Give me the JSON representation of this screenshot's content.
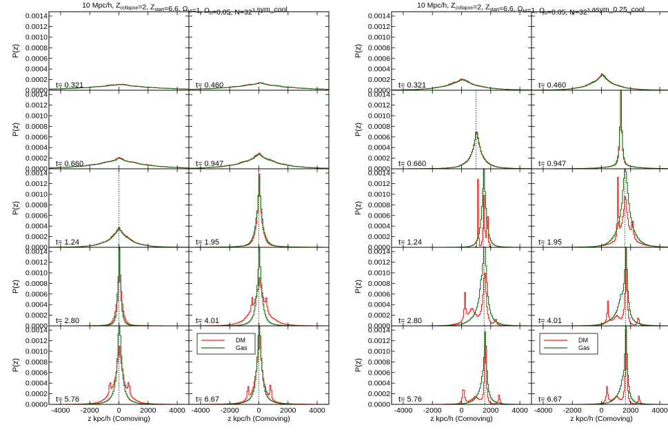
{
  "figure": {
    "colors": {
      "dm": "#e8231d",
      "gas": "#1c6e14",
      "marker": "#000000"
    },
    "time_labels": [
      "t= 0.321",
      "t= 0.460",
      "t= 0.660",
      "t= 0.947",
      "t= 1.24",
      "t= 1.95",
      "t= 2.80",
      "t= 4.01",
      "t= 5.76",
      "t= 6.67"
    ]
  },
  "chart_data": [
    {
      "type": "line",
      "title_parts": {
        "a": "10 Mpc/h, Z",
        "a_sub": "collapse",
        "b": "=2, Z",
        "b_sub": "start",
        "c": "=6.6, Ω",
        "c_sub": "M",
        "d": "=1, Ω",
        "d_sub": "b",
        "e": "=0.05, N=32",
        "e_sup": "3",
        "f": ",sym_cool"
      },
      "xlabel": "z kpc/h (Comoving)",
      "ylabel": "P(z)",
      "xlim": [
        -4800,
        4800
      ],
      "ylim": [
        0,
        0.00148
      ],
      "xticks": [
        "-4000",
        "-2000",
        "0",
        "2000",
        "4000"
      ],
      "yticks": [
        "0.0000",
        "0.0002",
        "0.0004",
        "0.0006",
        "0.0008",
        "0.0010",
        "0.0012",
        "0.0014"
      ],
      "legend": {
        "placement": "top-center",
        "entries": [
          "DM",
          "Gas"
        ]
      },
      "panels": [
        {
          "t": "t= 0.321",
          "center": 0,
          "marker": false,
          "dm": {
            "amp": 0.000115,
            "w": 2800,
            "comps": []
          },
          "gas": {
            "amp": 0.000112,
            "w": 2800,
            "comps": []
          }
        },
        {
          "t": "t= 0.460",
          "center": 0,
          "marker": false,
          "dm": {
            "amp": 0.00014,
            "w": 2300,
            "comps": []
          },
          "gas": {
            "amp": 0.000135,
            "w": 2300,
            "comps": []
          }
        },
        {
          "t": "t= 0.660",
          "center": 0,
          "marker": false,
          "dm": {
            "amp": 0.0002,
            "w": 1900,
            "comps": []
          },
          "gas": {
            "amp": 0.000195,
            "w": 1900,
            "comps": []
          }
        },
        {
          "t": "t= 0.947",
          "center": 0,
          "marker": false,
          "dm": {
            "amp": 0.00028,
            "w": 1400,
            "comps": []
          },
          "gas": {
            "amp": 0.00027,
            "w": 1400,
            "comps": []
          }
        },
        {
          "t": "t= 1.24",
          "center": 0,
          "marker": true,
          "dm": {
            "amp": 0.00037,
            "w": 800,
            "comps": []
          },
          "gas": {
            "amp": 0.00036,
            "w": 800,
            "comps": []
          }
        },
        {
          "t": "t= 1.95",
          "center": 0,
          "marker": true,
          "dm": {
            "amp": 0.00135,
            "w": 170,
            "comps": [
              [
                8e-05,
                0,
                900
              ]
            ]
          },
          "gas": {
            "amp": 0.0013,
            "w": 200,
            "comps": [
              [
                8e-05,
                0,
                900
              ]
            ]
          }
        },
        {
          "t": "t= 2.80",
          "center": 0,
          "marker": true,
          "dm": {
            "amp": 0.00148,
            "w": 150,
            "comps": [
              [
                5e-05,
                0,
                700
              ]
            ]
          },
          "gas": {
            "amp": 0.00145,
            "w": 110,
            "comps": [
              [
                8e-05,
                0,
                420
              ]
            ]
          }
        },
        {
          "t": "t= 4.01",
          "center": 0,
          "marker": true,
          "dm": {
            "amp": 0.00078,
            "w": 500,
            "comps": [
              [
                0.0004,
                -500,
                30
              ],
              [
                0.0004,
                500,
                30
              ],
              [
                8e-05,
                0,
                900
              ]
            ]
          },
          "gas": {
            "amp": 0.00138,
            "w": 170,
            "comps": [
              [
                0.0002,
                0,
                500
              ]
            ]
          }
        },
        {
          "t": "t= 5.76",
          "center": 0,
          "marker": true,
          "dm": {
            "amp": 0.00095,
            "w": 380,
            "comps": [
              [
                0.0004,
                -650,
                40
              ],
              [
                0.0004,
                650,
                40
              ],
              [
                0.0001,
                0,
                900
              ]
            ]
          },
          "gas": {
            "amp": 0.00148,
            "w": 150,
            "comps": [
              [
                0.0004,
                0,
                450
              ]
            ]
          }
        },
        {
          "t": "t= 6.67",
          "center": 0,
          "marker": true,
          "legend": true,
          "dm": {
            "amp": 0.00115,
            "w": 280,
            "comps": [
              [
                0.00045,
                -780,
                40
              ],
              [
                0.00045,
                780,
                40
              ],
              [
                0.0001,
                0,
                950
              ]
            ]
          },
          "gas": {
            "amp": 0.00142,
            "w": 150,
            "comps": [
              [
                0.0004,
                0,
                450
              ]
            ]
          }
        }
      ]
    },
    {
      "type": "line",
      "title_parts": {
        "a": "10 Mpc/h, Z",
        "a_sub": "collapse",
        "b": "=2, Z",
        "b_sub": "start",
        "c": "=6.6, Ω",
        "c_sub": "M",
        "d": "=1, Ω",
        "d_sub": "b",
        "e": "=0.05, N=32",
        "e_sup": "3",
        "f": ",asym_0.25_cool"
      },
      "xlabel": "z kpc/h (Comoving)",
      "ylabel": "P(z)",
      "xlim": [
        -4800,
        4800
      ],
      "ylim": [
        0,
        0.00148
      ],
      "xticks": [
        "-4000",
        "-2000",
        "0",
        "2000",
        "4000"
      ],
      "yticks": [
        "0.0000",
        "0.0002",
        "0.0004",
        "0.0006",
        "0.0008",
        "0.0010",
        "0.0012",
        "0.0014"
      ],
      "legend": {
        "placement": "top-center",
        "entries": [
          "DM",
          "Gas"
        ]
      },
      "panels": [
        {
          "t": "t= 0.321",
          "center": 0,
          "marker": false,
          "dm": {
            "amp": 0.00022,
            "w": 1200,
            "comps": []
          },
          "gas": {
            "amp": 0.00021,
            "w": 1200,
            "comps": []
          }
        },
        {
          "t": "t= 0.460",
          "center": 0,
          "marker": false,
          "dm": {
            "amp": 0.0003,
            "w": 900,
            "comps": []
          },
          "gas": {
            "amp": 0.00029,
            "w": 900,
            "comps": []
          }
        },
        {
          "t": "t= 0.660",
          "center": 1000,
          "marker": true,
          "dm": {
            "amp": 0.0006,
            "w": 350,
            "comps": [
              [
                0.00012,
                1000,
                900
              ]
            ]
          },
          "gas": {
            "amp": 0.00058,
            "w": 350,
            "comps": [
              [
                0.00012,
                1000,
                900
              ]
            ]
          }
        },
        {
          "t": "t= 0.947",
          "center": 1300,
          "marker": false,
          "dm": {
            "amp": 0.00148,
            "w": 80,
            "comps": [
              [
                0.0001,
                1300,
                900
              ]
            ]
          },
          "gas": {
            "amp": 0.00145,
            "w": 90,
            "comps": [
              [
                0.0001,
                1300,
                900
              ]
            ]
          }
        },
        {
          "t": "t= 1.24",
          "center": 1500,
          "marker": true,
          "dm": {
            "amp": 0.00105,
            "w": 60,
            "comps": [
              [
                0.0015,
                1100,
                30
              ],
              [
                0.0012,
                1750,
                40
              ]
            ]
          },
          "gas": {
            "amp": 0.00148,
            "w": 170,
            "comps": [
              [
                0.0001,
                1500,
                500
              ]
            ]
          }
        },
        {
          "t": "t= 1.95",
          "center": 1600,
          "marker": true,
          "dm": {
            "amp": 0.0007,
            "w": 200,
            "comps": [
              [
                0.00125,
                1100,
                50
              ],
              [
                0.0005,
                2100,
                60
              ],
              [
                0.0003,
                1600,
                700
              ]
            ]
          },
          "gas": {
            "amp": 0.00132,
            "w": 320,
            "comps": [
              [
                0.0003,
                1600,
                700
              ]
            ]
          }
        },
        {
          "t": "t= 2.80",
          "center": 1550,
          "marker": true,
          "dm": {
            "amp": 0.0011,
            "w": 130,
            "comps": [
              [
                0.00055,
                200,
                60
              ],
              [
                0.00015,
                2300,
                80
              ],
              [
                0.00035,
                700,
                500
              ]
            ]
          },
          "gas": {
            "amp": 0.00148,
            "w": 170,
            "comps": [
              [
                0.0005,
                1300,
                500
              ]
            ]
          }
        },
        {
          "t": "t= 4.01",
          "center": 1650,
          "marker": true,
          "dm": {
            "amp": 0.00148,
            "w": 80,
            "comps": [
              [
                0.00045,
                400,
                60
              ],
              [
                0.00022,
                2500,
                60
              ],
              [
                0.0002,
                1000,
                500
              ]
            ]
          },
          "gas": {
            "amp": 0.00148,
            "w": 120,
            "comps": [
              [
                0.0005,
                1300,
                500
              ]
            ]
          }
        },
        {
          "t": "t= 5.76",
          "center": 1600,
          "marker": true,
          "dm": {
            "amp": 0.00148,
            "w": 70,
            "comps": [
              [
                0.00038,
                100,
                70
              ],
              [
                0.00022,
                2550,
                60
              ],
              [
                0.00015,
                900,
                500
              ]
            ]
          },
          "gas": {
            "amp": 0.00148,
            "w": 100,
            "comps": [
              [
                0.0004,
                1400,
                400
              ]
            ]
          }
        },
        {
          "t": "t= 6.67",
          "center": 1650,
          "marker": true,
          "legend": true,
          "dm": {
            "amp": 0.00148,
            "w": 70,
            "comps": [
              [
                0.00035,
                350,
                70
              ],
              [
                0.0002,
                2550,
                60
              ],
              [
                0.00015,
                1000,
                500
              ]
            ]
          },
          "gas": {
            "amp": 0.00148,
            "w": 100,
            "comps": [
              [
                0.0004,
                1400,
                400
              ]
            ]
          }
        }
      ]
    }
  ]
}
